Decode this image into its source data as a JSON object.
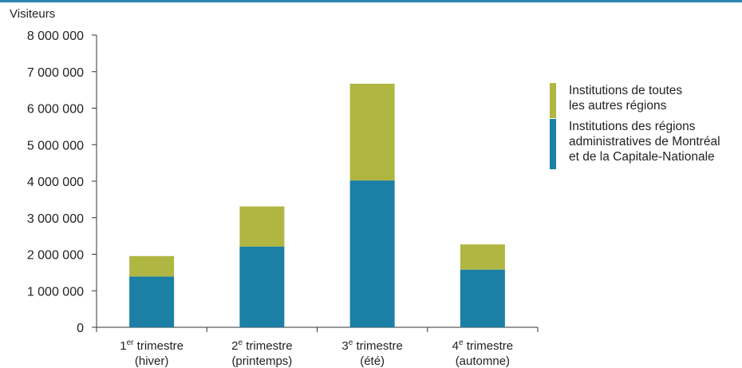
{
  "colors": {
    "top_line": "#2a87b5",
    "series_montreal": "#1b7fa6",
    "series_other": "#b0b642",
    "axis": "#333333"
  },
  "chart_data": {
    "type": "bar",
    "stacked": true,
    "ylabel": "Visiteurs",
    "ylim": [
      0,
      8000000
    ],
    "yticks": [
      0,
      1000000,
      2000000,
      3000000,
      4000000,
      5000000,
      6000000,
      7000000,
      8000000
    ],
    "ytick_labels": [
      "0",
      "1 000 000",
      "2 000 000",
      "3 000 000",
      "4 000 000",
      "5 000 000",
      "6 000 000",
      "7 000 000",
      "8 000 000"
    ],
    "categories": [
      {
        "num": "1",
        "sup": "er",
        "rest": " trimestre",
        "line2": "(hiver)"
      },
      {
        "num": "2",
        "sup": "e",
        "rest": " trimestre",
        "line2": "(printemps)"
      },
      {
        "num": "3",
        "sup": "e",
        "rest": " trimestre",
        "line2": "(été)"
      },
      {
        "num": "4",
        "sup": "e",
        "rest": " trimestre",
        "line2": "(automne)"
      }
    ],
    "series": [
      {
        "name": "Institutions des régions administratives de Montréal et de la Capitale-Nationale",
        "color": "#1b7fa6",
        "values": [
          1390000,
          2210000,
          4020000,
          1580000
        ]
      },
      {
        "name": "Institutions de toutes les autres régions",
        "color": "#b0b642",
        "values": [
          560000,
          1100000,
          2650000,
          690000
        ]
      }
    ],
    "legend": [
      {
        "text": "Institutions de toutes\nles autres régions",
        "color": "#b0b642"
      },
      {
        "text": "Institutions des régions\nadministratives de Montréal\net de la Capitale-Nationale",
        "color": "#1b7fa6"
      }
    ],
    "legend_position": "right"
  }
}
